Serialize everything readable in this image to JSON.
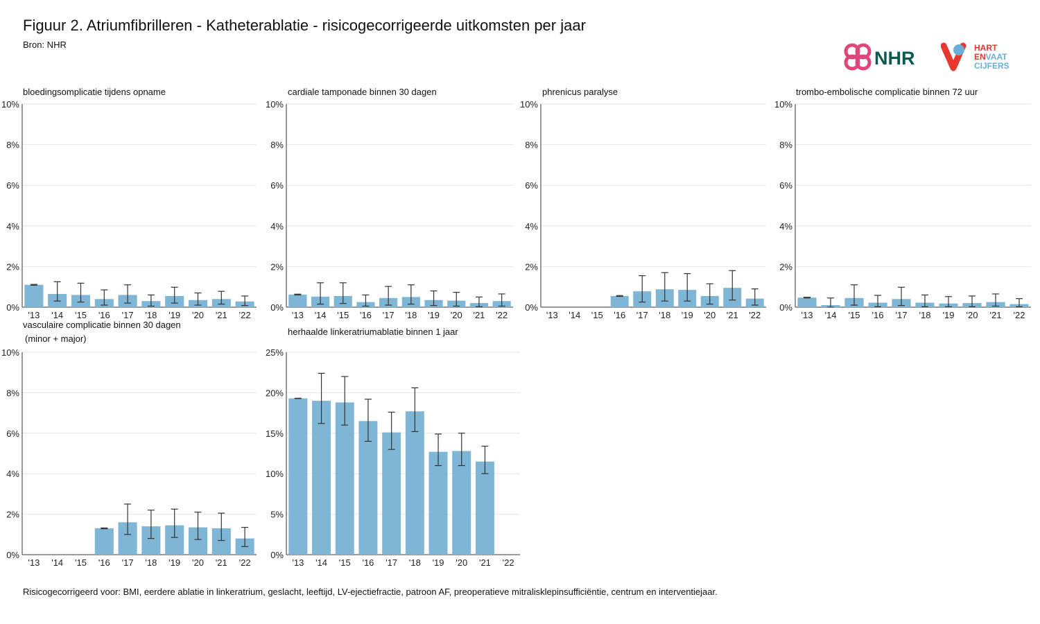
{
  "header": {
    "title": "Figuur 2. Atriumfibrilleren - Katheterablatie - risicogecorrigeerde uitkomsten per jaar",
    "source": "Bron: NHR"
  },
  "logos": {
    "nhr": {
      "text": "NHR",
      "color": "#0a5a52",
      "accent": "#e0457b"
    },
    "hvc": {
      "line1": "HART",
      "line2a": "EN",
      "line2b": "VAAT",
      "line3": "CIJFERS",
      "red": "#e8372c",
      "blue": "#6aaed6"
    }
  },
  "footnote": "Risicogecorrigeerd voor: BMI, eerdere ablatie in linkeratrium, geslacht, leeftijd, LV-ejectiefractie, patroon AF, preoperatieve mitralisklepinsufficiëntie, centrum en interventiejaar.",
  "colors": {
    "bar": "#7fb5d5",
    "grid": "#e6e6e6",
    "axis": "#333333",
    "errorbar": "#333333"
  },
  "chart_data": [
    {
      "type": "bar",
      "title": "bloedingsomplicatie tijdens opname",
      "categories": [
        "'13",
        "'14",
        "'15",
        "'16",
        "'17",
        "'18",
        "'19",
        "'20",
        "'21",
        "'22"
      ],
      "values": [
        1.1,
        0.65,
        0.6,
        0.4,
        0.6,
        0.3,
        0.55,
        0.35,
        0.4,
        0.28
      ],
      "ci_low": [
        1.08,
        0.3,
        0.25,
        0.1,
        0.2,
        0.05,
        0.2,
        0.1,
        0.15,
        0.08
      ],
      "ci_high": [
        1.12,
        1.25,
        1.18,
        0.85,
        1.1,
        0.6,
        0.98,
        0.7,
        0.78,
        0.55
      ],
      "yticks": [
        "0%",
        "2%",
        "4%",
        "6%",
        "8%",
        "10%"
      ],
      "ylim": [
        0,
        10
      ],
      "grid": true
    },
    {
      "type": "bar",
      "title": "cardiale tamponade binnen 30 dagen",
      "categories": [
        "'13",
        "'14",
        "'15",
        "'16",
        "'17",
        "'18",
        "'19",
        "'20",
        "'21",
        "'22"
      ],
      "values": [
        0.62,
        0.52,
        0.55,
        0.25,
        0.45,
        0.5,
        0.35,
        0.32,
        0.2,
        0.3
      ],
      "ci_low": [
        0.6,
        0.15,
        0.18,
        0.05,
        0.1,
        0.15,
        0.08,
        0.05,
        0.02,
        0.05
      ],
      "ci_high": [
        0.64,
        1.2,
        1.2,
        0.6,
        1.02,
        1.1,
        0.8,
        0.73,
        0.5,
        0.65
      ],
      "yticks": [
        "0%",
        "2%",
        "4%",
        "6%",
        "8%",
        "10%"
      ],
      "ylim": [
        0,
        10
      ],
      "grid": true
    },
    {
      "type": "bar",
      "title": "phrenicus paralyse",
      "categories": [
        "'13",
        "'14",
        "'15",
        "'16",
        "'17",
        "'18",
        "'19",
        "'20",
        "'21",
        "'22"
      ],
      "values": [
        null,
        null,
        null,
        0.55,
        0.78,
        0.88,
        0.85,
        0.55,
        0.95,
        0.42
      ],
      "ci_low": [
        null,
        null,
        null,
        0.53,
        0.25,
        0.3,
        0.3,
        0.15,
        0.35,
        0.1
      ],
      "ci_high": [
        null,
        null,
        null,
        0.57,
        1.55,
        1.7,
        1.65,
        1.15,
        1.8,
        0.9
      ],
      "yticks": [
        "0%",
        "2%",
        "4%",
        "6%",
        "8%",
        "10%"
      ],
      "ylim": [
        0,
        10
      ],
      "grid": true
    },
    {
      "type": "bar",
      "title": "trombo-embolische complicatie binnen 72 uur",
      "categories": [
        "'13",
        "'14",
        "'15",
        "'16",
        "'17",
        "'18",
        "'19",
        "'20",
        "'21",
        "'22"
      ],
      "values": [
        0.47,
        0.1,
        0.45,
        0.22,
        0.4,
        0.22,
        0.18,
        0.2,
        0.25,
        0.15
      ],
      "ci_low": [
        0.45,
        0.0,
        0.1,
        0.02,
        0.08,
        0.02,
        0.02,
        0.02,
        0.05,
        0.02
      ],
      "ci_high": [
        0.49,
        0.45,
        1.1,
        0.58,
        0.98,
        0.6,
        0.52,
        0.55,
        0.65,
        0.42
      ],
      "yticks": [
        "0%",
        "2%",
        "4%",
        "6%",
        "8%",
        "10%"
      ],
      "ylim": [
        0,
        10
      ],
      "grid": true
    },
    {
      "type": "bar",
      "title": "vasculaire complicatie binnen 30 dagen (minor + major)",
      "categories": [
        "'13",
        "'14",
        "'15",
        "'16",
        "'17",
        "'18",
        "'19",
        "'20",
        "'21",
        "'22"
      ],
      "values": [
        null,
        null,
        null,
        1.3,
        1.6,
        1.4,
        1.45,
        1.35,
        1.3,
        0.8
      ],
      "ci_low": [
        null,
        null,
        null,
        1.28,
        1.0,
        0.8,
        0.85,
        0.75,
        0.7,
        0.4
      ],
      "ci_high": [
        null,
        null,
        null,
        1.32,
        2.5,
        2.2,
        2.25,
        2.1,
        2.05,
        1.35
      ],
      "yticks": [
        "0%",
        "2%",
        "4%",
        "6%",
        "8%",
        "10%"
      ],
      "ylim": [
        0,
        10
      ],
      "grid": true
    },
    {
      "type": "bar",
      "title": "herhaalde linkeratriumablatie binnen 1 jaar",
      "categories": [
        "'13",
        "'14",
        "'15",
        "'16",
        "'17",
        "'18",
        "'19",
        "'20",
        "'21",
        "'22"
      ],
      "values": [
        19.3,
        19.0,
        18.8,
        16.5,
        15.1,
        17.7,
        12.7,
        12.8,
        11.5,
        null
      ],
      "ci_low": [
        19.28,
        16.2,
        16.0,
        14.0,
        13.0,
        15.2,
        11.0,
        11.0,
        10.0,
        null
      ],
      "ci_high": [
        19.32,
        22.4,
        22.0,
        19.2,
        17.6,
        20.6,
        14.9,
        15.0,
        13.4,
        null
      ],
      "yticks": [
        "0%",
        "5%",
        "10%",
        "15%",
        "20%",
        "25%"
      ],
      "ylim": [
        0,
        25
      ],
      "grid": true
    }
  ]
}
